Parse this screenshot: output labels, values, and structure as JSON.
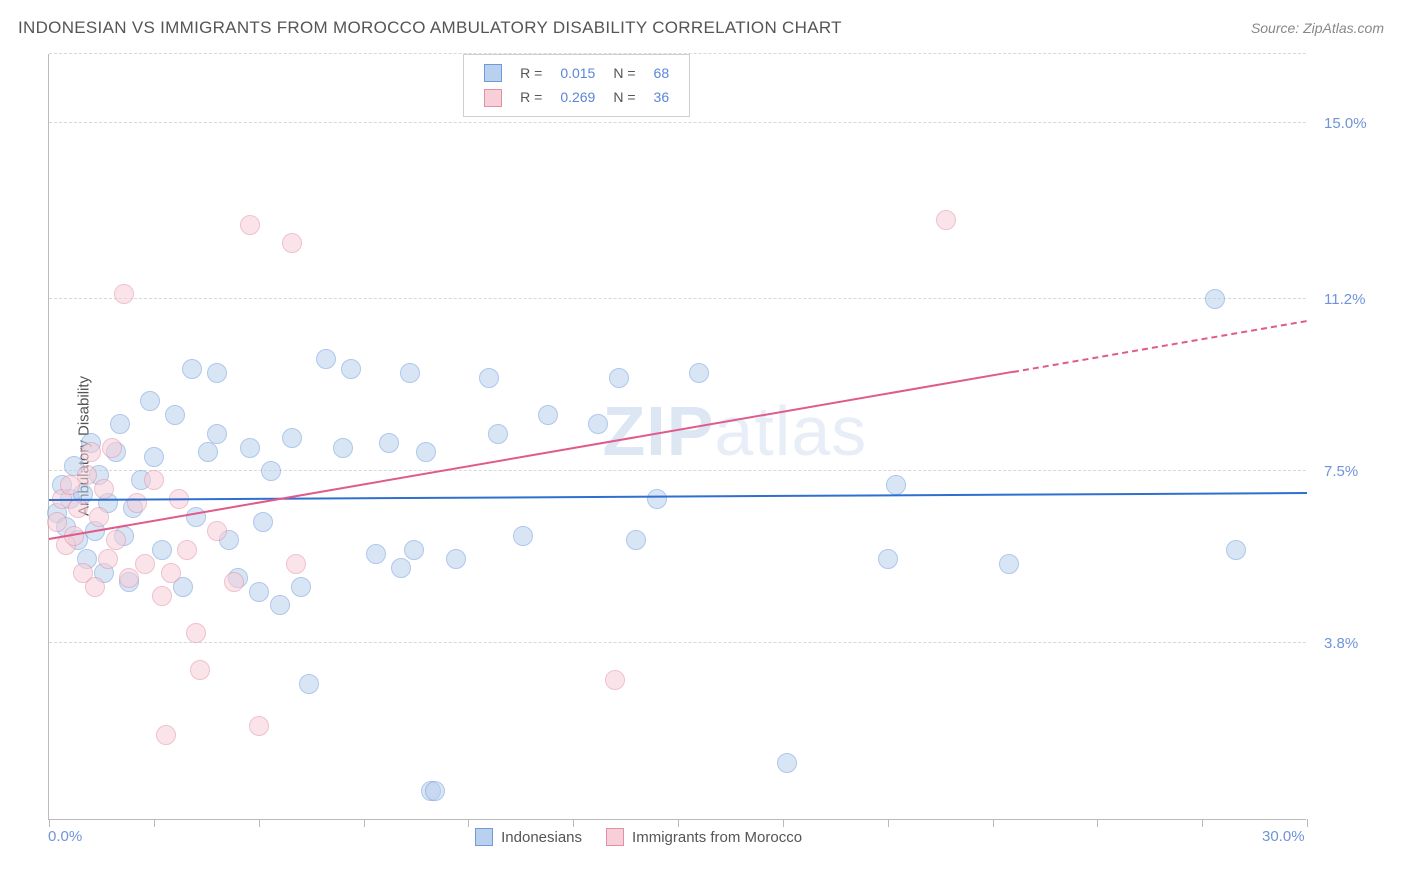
{
  "title": "INDONESIAN VS IMMIGRANTS FROM MOROCCO AMBULATORY DISABILITY CORRELATION CHART",
  "source": "Source: ZipAtlas.com",
  "y_axis_label": "Ambulatory Disability",
  "watermark": {
    "bold": "ZIP",
    "rest": "atlas"
  },
  "chart": {
    "type": "scatter",
    "xlim": [
      0.0,
      30.0
    ],
    "ylim": [
      0.0,
      16.5
    ],
    "x_min_label": "0.0%",
    "x_max_label": "30.0%",
    "y_ticks": [
      {
        "v": 3.8,
        "label": "3.8%"
      },
      {
        "v": 7.5,
        "label": "7.5%"
      },
      {
        "v": 11.2,
        "label": "11.2%"
      },
      {
        "v": 15.0,
        "label": "15.0%"
      }
    ],
    "x_tick_positions": [
      0,
      2.5,
      5.0,
      7.5,
      10.0,
      12.5,
      15.0,
      17.5,
      20.0,
      22.5,
      25.0,
      27.5,
      30.0
    ],
    "background_color": "#ffffff",
    "grid_color": "#d8d8d8",
    "axis_color": "#bbbbbb",
    "tick_label_color": "#6f94d8",
    "marker_radius": 10,
    "marker_opacity": 0.55,
    "series": [
      {
        "id": "indonesians",
        "name": "Indonesians",
        "color_fill": "#b9d0ee",
        "color_stroke": "#6f9bd8",
        "r_value": "0.015",
        "n_value": "68",
        "trend": {
          "x1": 0.0,
          "y1": 6.85,
          "x2": 30.0,
          "y2": 7.0,
          "color": "#2f6fd0",
          "width": 2,
          "dash": false
        },
        "points": [
          [
            0.2,
            6.6
          ],
          [
            0.3,
            7.2
          ],
          [
            0.4,
            6.3
          ],
          [
            0.5,
            6.9
          ],
          [
            0.6,
            7.6
          ],
          [
            0.7,
            6.0
          ],
          [
            0.8,
            7.0
          ],
          [
            0.9,
            5.6
          ],
          [
            1.0,
            8.1
          ],
          [
            1.1,
            6.2
          ],
          [
            1.2,
            7.4
          ],
          [
            1.3,
            5.3
          ],
          [
            1.4,
            6.8
          ],
          [
            1.6,
            7.9
          ],
          [
            1.7,
            8.5
          ],
          [
            1.8,
            6.1
          ],
          [
            1.9,
            5.1
          ],
          [
            2.0,
            6.7
          ],
          [
            2.2,
            7.3
          ],
          [
            2.4,
            9.0
          ],
          [
            2.5,
            7.8
          ],
          [
            2.7,
            5.8
          ],
          [
            3.0,
            8.7
          ],
          [
            3.2,
            5.0
          ],
          [
            3.4,
            9.7
          ],
          [
            3.5,
            6.5
          ],
          [
            3.8,
            7.9
          ],
          [
            4.0,
            8.3
          ],
          [
            4.0,
            9.6
          ],
          [
            4.3,
            6.0
          ],
          [
            4.5,
            5.2
          ],
          [
            4.8,
            8.0
          ],
          [
            5.0,
            4.9
          ],
          [
            5.1,
            6.4
          ],
          [
            5.3,
            7.5
          ],
          [
            5.5,
            4.6
          ],
          [
            5.8,
            8.2
          ],
          [
            6.0,
            5.0
          ],
          [
            6.2,
            2.9
          ],
          [
            6.6,
            9.9
          ],
          [
            7.0,
            8.0
          ],
          [
            7.2,
            9.7
          ],
          [
            7.8,
            5.7
          ],
          [
            8.1,
            8.1
          ],
          [
            8.4,
            5.4
          ],
          [
            8.6,
            9.6
          ],
          [
            8.7,
            5.8
          ],
          [
            9.0,
            7.9
          ],
          [
            9.1,
            0.6
          ],
          [
            9.2,
            0.6
          ],
          [
            9.7,
            5.6
          ],
          [
            10.5,
            9.5
          ],
          [
            10.7,
            8.3
          ],
          [
            11.3,
            6.1
          ],
          [
            11.9,
            8.7
          ],
          [
            13.1,
            8.5
          ],
          [
            13.6,
            9.5
          ],
          [
            14.0,
            6.0
          ],
          [
            14.5,
            6.9
          ],
          [
            15.5,
            9.6
          ],
          [
            17.6,
            1.2
          ],
          [
            20.0,
            5.6
          ],
          [
            20.2,
            7.2
          ],
          [
            22.9,
            5.5
          ],
          [
            27.8,
            11.2
          ],
          [
            28.3,
            5.8
          ]
        ]
      },
      {
        "id": "morocco",
        "name": "Immigrants from Morocco",
        "color_fill": "#f6cfd8",
        "color_stroke": "#e390a6",
        "r_value": "0.269",
        "n_value": "36",
        "trend": {
          "x1": 0.0,
          "y1": 6.0,
          "x2": 30.0,
          "y2": 10.7,
          "color": "#e05a8a",
          "width": 2,
          "dash": false,
          "dash_from_x": 23.0
        },
        "points": [
          [
            0.2,
            6.4
          ],
          [
            0.3,
            6.9
          ],
          [
            0.4,
            5.9
          ],
          [
            0.5,
            7.2
          ],
          [
            0.6,
            6.1
          ],
          [
            0.7,
            6.7
          ],
          [
            0.8,
            5.3
          ],
          [
            0.9,
            7.4
          ],
          [
            1.0,
            7.9
          ],
          [
            1.1,
            5.0
          ],
          [
            1.2,
            6.5
          ],
          [
            1.3,
            7.1
          ],
          [
            1.4,
            5.6
          ],
          [
            1.5,
            8.0
          ],
          [
            1.6,
            6.0
          ],
          [
            1.8,
            11.3
          ],
          [
            1.9,
            5.2
          ],
          [
            2.1,
            6.8
          ],
          [
            2.3,
            5.5
          ],
          [
            2.5,
            7.3
          ],
          [
            2.7,
            4.8
          ],
          [
            2.8,
            1.8
          ],
          [
            2.9,
            5.3
          ],
          [
            3.1,
            6.9
          ],
          [
            3.3,
            5.8
          ],
          [
            3.5,
            4.0
          ],
          [
            3.6,
            3.2
          ],
          [
            4.0,
            6.2
          ],
          [
            4.4,
            5.1
          ],
          [
            4.8,
            12.8
          ],
          [
            5.0,
            2.0
          ],
          [
            5.8,
            12.4
          ],
          [
            5.9,
            5.5
          ],
          [
            13.5,
            3.0
          ],
          [
            21.4,
            12.9
          ]
        ]
      }
    ]
  },
  "legend_top": {
    "r_label": "R =",
    "n_label": "N ="
  },
  "legend_bottom": {
    "items": [
      {
        "series": "indonesians"
      },
      {
        "series": "morocco"
      }
    ]
  }
}
